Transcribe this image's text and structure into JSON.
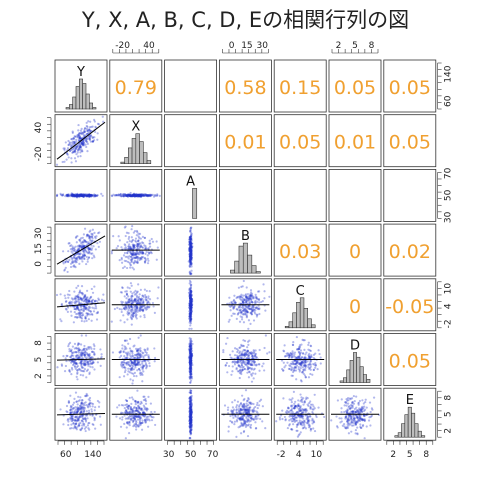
{
  "chart_data": {
    "type": "scatter-matrix",
    "title": "Y, X, A, B, C, D, Eの相関行列の図",
    "variables": [
      "Y",
      "X",
      "A",
      "B",
      "C",
      "D",
      "E"
    ],
    "correlations": [
      [
        "",
        "0.79",
        "",
        "0.58",
        "0.15",
        "0.05",
        "0.05"
      ],
      [
        "",
        "",
        "",
        "0.01",
        "0.05",
        "0.01",
        "0.05"
      ],
      [
        "",
        "",
        "",
        "",
        "",
        "",
        ""
      ],
      [
        "",
        "",
        "",
        "",
        "0.03",
        "0",
        "0.02"
      ],
      [
        "",
        "",
        "",
        "",
        "",
        "0",
        "-0.05"
      ],
      [
        "",
        "",
        "",
        "",
        "",
        "",
        "0.05"
      ],
      [
        "",
        "",
        "",
        "",
        "",
        "",
        ""
      ]
    ],
    "ranges": [
      [
        40,
        170
      ],
      [
        -40,
        60
      ],
      [
        30,
        70
      ],
      [
        -8,
        35
      ],
      [
        -3,
        12
      ],
      [
        1,
        9
      ],
      [
        1,
        9
      ]
    ],
    "fit_slopes": [
      0,
      0.55,
      0,
      0.42,
      0.06,
      0.02,
      0.02
    ],
    "histograms": [
      [
        1,
        3,
        8,
        15,
        20,
        17,
        10,
        4,
        1
      ],
      [
        1,
        4,
        10,
        16,
        19,
        14,
        7,
        2
      ],
      [
        0,
        0,
        0,
        1,
        0,
        0,
        0
      ],
      [
        2,
        8,
        18,
        20,
        12,
        5,
        1
      ],
      [
        1,
        4,
        10,
        17,
        20,
        13,
        6,
        2
      ],
      [
        1,
        3,
        8,
        14,
        19,
        16,
        10,
        5,
        2
      ],
      [
        1,
        3,
        9,
        15,
        20,
        16,
        9,
        4,
        1
      ]
    ],
    "top_ticks": [
      {
        "col": 1,
        "labels": [
          "-20",
          "40"
        ],
        "values": [
          -20,
          40
        ]
      },
      {
        "col": 3,
        "labels": [
          "0",
          "15",
          "30"
        ],
        "values": [
          0,
          15,
          30
        ]
      },
      {
        "col": 5,
        "labels": [
          "2",
          "5",
          "8"
        ],
        "values": [
          2,
          5,
          8
        ]
      }
    ],
    "bottom_ticks": [
      {
        "col": 0,
        "labels": [
          "60",
          "140"
        ],
        "values": [
          60,
          140
        ]
      },
      {
        "col": 2,
        "labels": [
          "30",
          "50",
          "70"
        ],
        "values": [
          30,
          50,
          70
        ]
      },
      {
        "col": 4,
        "labels": [
          "-2",
          "4",
          "10"
        ],
        "values": [
          -2,
          4,
          10
        ]
      },
      {
        "col": 6,
        "labels": [
          "2",
          "5",
          "8"
        ],
        "values": [
          2,
          5,
          8
        ]
      }
    ],
    "left_ticks": [
      {
        "row": 1,
        "labels": [
          "-20",
          "40"
        ],
        "values": [
          -20,
          40
        ]
      },
      {
        "row": 3,
        "labels": [
          "0",
          "15",
          "30"
        ],
        "values": [
          0,
          15,
          30
        ]
      },
      {
        "row": 5,
        "labels": [
          "2",
          "5",
          "8"
        ],
        "values": [
          2,
          5,
          8
        ]
      }
    ],
    "right_ticks": [
      {
        "row": 0,
        "labels": [
          "60",
          "140"
        ],
        "values": [
          60,
          140
        ]
      },
      {
        "row": 2,
        "labels": [
          "30",
          "50",
          "70"
        ],
        "values": [
          30,
          50,
          70
        ]
      },
      {
        "row": 4,
        "labels": [
          "-2",
          "4",
          "10"
        ],
        "values": [
          -2,
          4,
          10
        ]
      },
      {
        "row": 6,
        "labels": [
          "2",
          "5",
          "8"
        ],
        "values": [
          2,
          5,
          8
        ]
      }
    ],
    "colors": {
      "points": "#2233cc",
      "correlation_text": "#f0a030",
      "histogram_fill": "#bdbdbd",
      "fit_line": "#000000"
    }
  }
}
